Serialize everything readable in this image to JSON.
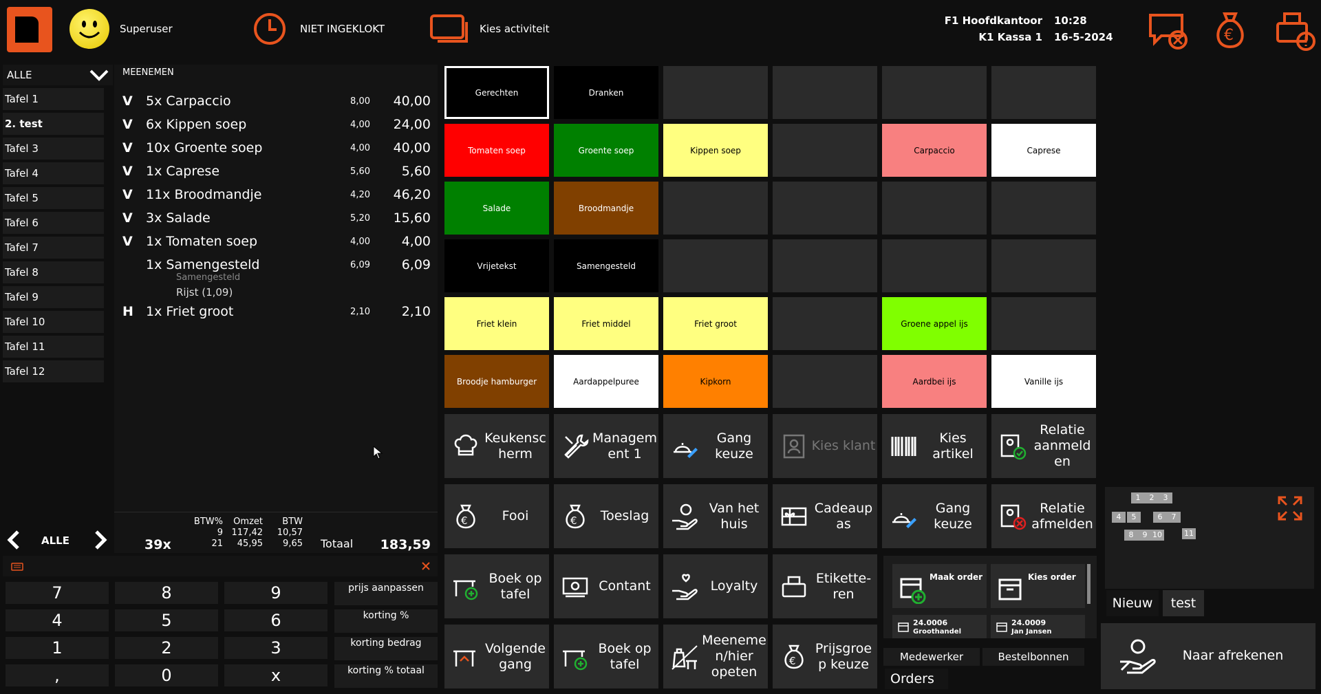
{
  "header": {
    "user": "Superuser",
    "clock_status": "NIET INGEKLOKT",
    "activity": "Kies activiteit",
    "location": "F1 Hoofdkantoor",
    "register": "K1 Kassa 1",
    "time": "10:28",
    "date": "16-5-2024"
  },
  "tables": {
    "filter": "ALLE",
    "items": [
      "Tafel 1",
      "2. test",
      "Tafel 3",
      "Tafel 4",
      "Tafel 5",
      "Tafel 6",
      "Tafel 7",
      "Tafel 8",
      "Tafel 9",
      "Tafel 10",
      "Tafel 11",
      "Tafel 12"
    ],
    "nav_label": "ALLE"
  },
  "order": {
    "title": "MEENEMEN",
    "lines": [
      {
        "status": "V",
        "qty": "5x Carpaccio",
        "price": "8,00",
        "total": "40,00"
      },
      {
        "status": "V",
        "qty": "6x Kippen soep",
        "price": "4,00",
        "total": "24,00"
      },
      {
        "status": "V",
        "qty": "10x Groente soep",
        "price": "4,00",
        "total": "40,00"
      },
      {
        "status": "V",
        "qty": "1x Caprese",
        "price": "5,60",
        "total": "5,60"
      },
      {
        "status": "V",
        "qty": "11x Broodmandje",
        "price": "4,20",
        "total": "46,20"
      },
      {
        "status": "V",
        "qty": "3x Salade",
        "price": "5,20",
        "total": "15,60"
      },
      {
        "status": "V",
        "qty": "1x Tomaten soep",
        "price": "4,00",
        "total": "4,00"
      },
      {
        "status": "",
        "qty": "1x Samengesteld",
        "price": "6,09",
        "total": "6,09"
      },
      {
        "status": "H",
        "qty": "1x Friet groot",
        "price": "2,10",
        "total": "2,10"
      }
    ],
    "sub_label": "Samengesteld",
    "sub_item": "Rijst (1,09)",
    "count": "39x",
    "btw_header": "BTW%",
    "omzet_header": "Omzet",
    "btw2_header": "BTW",
    "btw_rows": [
      {
        "pct": "9",
        "omzet": "117,42",
        "btw": "10,57"
      },
      {
        "pct": "21",
        "omzet": "45,95",
        "btw": "9,65"
      }
    ],
    "total_label": "Totaal",
    "total": "183,59"
  },
  "keypad": {
    "keys": [
      "7",
      "8",
      "9",
      "4",
      "5",
      "6",
      "1",
      "2",
      "3",
      ",",
      "0",
      "x"
    ],
    "side": [
      "prijs aanpassen",
      "korting %",
      "korting bedrag",
      "korting % totaal"
    ]
  },
  "products": [
    {
      "label": "Gerechten",
      "bg": "#000000",
      "fg": "#ffffff",
      "border": "#ffffff"
    },
    {
      "label": "Dranken",
      "bg": "#000000",
      "fg": "#ffffff"
    },
    {
      "label": "",
      "bg": "#2b2b2b"
    },
    {
      "label": "",
      "bg": "#2b2b2b"
    },
    {
      "label": "",
      "bg": "#2b2b2b"
    },
    {
      "label": "",
      "bg": "#2b2b2b"
    },
    {
      "label": "Tomaten soep",
      "bg": "#ff0000",
      "fg": "#ffffff"
    },
    {
      "label": "Groente soep",
      "bg": "#008000",
      "fg": "#ffffff"
    },
    {
      "label": "Kippen soep",
      "bg": "#ffff80",
      "fg": "#000000"
    },
    {
      "label": "",
      "bg": "#2b2b2b"
    },
    {
      "label": "Carpaccio",
      "bg": "#f88080",
      "fg": "#000000"
    },
    {
      "label": "Caprese",
      "bg": "#ffffff",
      "fg": "#000000"
    },
    {
      "label": "Salade",
      "bg": "#008000",
      "fg": "#ffffff"
    },
    {
      "label": "Broodmandje",
      "bg": "#804000",
      "fg": "#ffffff"
    },
    {
      "label": "",
      "bg": "#2b2b2b"
    },
    {
      "label": "",
      "bg": "#2b2b2b"
    },
    {
      "label": "",
      "bg": "#2b2b2b"
    },
    {
      "label": "",
      "bg": "#2b2b2b"
    },
    {
      "label": "Vrijetekst",
      "bg": "#000000",
      "fg": "#ffffff"
    },
    {
      "label": "Samengesteld",
      "bg": "#000000",
      "fg": "#ffffff"
    },
    {
      "label": "",
      "bg": "#2b2b2b"
    },
    {
      "label": "",
      "bg": "#2b2b2b"
    },
    {
      "label": "",
      "bg": "#2b2b2b"
    },
    {
      "label": "",
      "bg": "#2b2b2b"
    },
    {
      "label": "Friet klein",
      "bg": "#ffff80",
      "fg": "#000000"
    },
    {
      "label": "Friet middel",
      "bg": "#ffff80",
      "fg": "#000000"
    },
    {
      "label": "Friet groot",
      "bg": "#ffff80",
      "fg": "#000000"
    },
    {
      "label": "",
      "bg": "#2b2b2b"
    },
    {
      "label": "Groene appel ijs",
      "bg": "#80ff00",
      "fg": "#000000"
    },
    {
      "label": "",
      "bg": "#2b2b2b"
    },
    {
      "label": "Broodje hamburger",
      "bg": "#804000",
      "fg": "#ffffff"
    },
    {
      "label": "Aardappelpuree",
      "bg": "#ffffff",
      "fg": "#000000"
    },
    {
      "label": "Kipkorn",
      "bg": "#ff8000",
      "fg": "#000000"
    },
    {
      "label": "",
      "bg": "#2b2b2b"
    },
    {
      "label": "Aardbei ijs",
      "bg": "#f88080",
      "fg": "#000000"
    },
    {
      "label": "Vanille ijs",
      "bg": "#ffffff",
      "fg": "#000000"
    }
  ],
  "functions": [
    {
      "label": "Keukensc herm",
      "icon": "chef-hat-icon"
    },
    {
      "label": "Managem ent 1",
      "icon": "tools-icon"
    },
    {
      "label": "Gang keuze",
      "icon": "dish-edit-icon"
    },
    {
      "label": "Kies klant",
      "icon": "contact-card-icon",
      "disabled": true
    },
    {
      "label": "Kies artikel",
      "icon": "barcode-icon"
    },
    {
      "label": "Relatie aanmeld en",
      "icon": "relation-login-icon"
    },
    {
      "label": "Fooi",
      "icon": "money-bag-euro-icon"
    },
    {
      "label": "Toeslag",
      "icon": "money-bag-euro-icon"
    },
    {
      "label": "Van het huis",
      "icon": "hand-coin-icon"
    },
    {
      "label": "Cadeaup as",
      "icon": "gift-card-icon"
    },
    {
      "label": "Gang keuze",
      "icon": "dish-edit-icon"
    },
    {
      "label": "Relatie afmelden",
      "icon": "relation-logout-icon"
    },
    {
      "label": "Boek op tafel",
      "icon": "table-add-icon"
    },
    {
      "label": "Contant",
      "icon": "cash-icon"
    },
    {
      "label": "Loyalty",
      "icon": "hand-heart-icon"
    },
    {
      "label": "Etikette- ren",
      "icon": "printer-icon"
    },
    {
      "label": "Volgende gang",
      "icon": "table-next-icon"
    },
    {
      "label": "Boek op tafel",
      "icon": "table-add-icon"
    },
    {
      "label": "Meeneme n/hier opeten",
      "icon": "takeaway-icon"
    },
    {
      "label": "Prijsgroe p keuze",
      "icon": "money-bag-euro-icon"
    }
  ],
  "orders": {
    "make_order": "Maak order",
    "choose_order": "Kies order",
    "order1_num": "24.0006",
    "order1_name": "Groothandel",
    "order2_num": "24.0009",
    "order2_name": "Jan Jansen",
    "tab_employee": "Medewerker",
    "tab_orders": "Bestelbonnen",
    "title": "Orders"
  },
  "floor": {
    "tables": [
      "1",
      "2",
      "3",
      "4",
      "5",
      "6",
      "7",
      "8",
      "9",
      "10",
      "11"
    ],
    "tab_new": "Nieuw",
    "tab_test": "test"
  },
  "checkout": {
    "label": "Naar afrekenen"
  },
  "colors": {
    "accent": "#e8541e",
    "tile": "#2b2b2b",
    "bg": "#0f0f0f"
  }
}
